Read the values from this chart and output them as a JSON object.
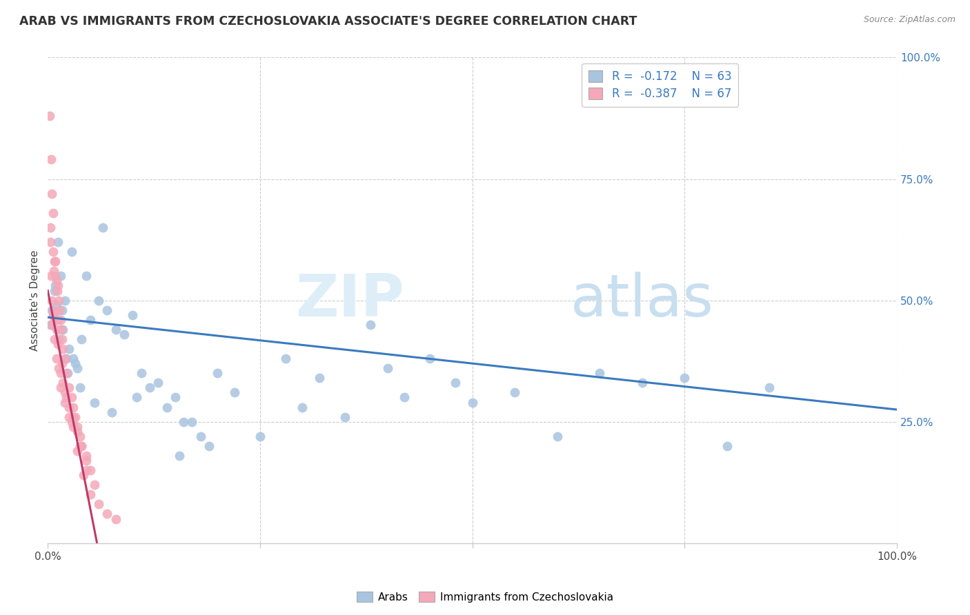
{
  "title": "ARAB VS IMMIGRANTS FROM CZECHOSLOVAKIA ASSOCIATE'S DEGREE CORRELATION CHART",
  "source": "Source: ZipAtlas.com",
  "ylabel": "Associate's Degree",
  "legend_blue_r": "-0.172",
  "legend_blue_n": "63",
  "legend_pink_r": "-0.387",
  "legend_pink_n": "67",
  "legend_label_blue": "Arabs",
  "legend_label_pink": "Immigrants from Czechoslovakia",
  "blue_color": "#a8c4e0",
  "pink_color": "#f4a8b8",
  "blue_line_color": "#3a7abf",
  "pink_line_color": "#c0396b",
  "pink_line_dashed_color": "#d4a0b0",
  "blue_scatter": [
    [
      0.5,
      48.0
    ],
    [
      1.2,
      62.0
    ],
    [
      1.5,
      55.0
    ],
    [
      2.0,
      50.0
    ],
    [
      0.8,
      52.0
    ],
    [
      0.3,
      45.0
    ],
    [
      0.6,
      47.0
    ],
    [
      1.0,
      49.0
    ],
    [
      1.8,
      44.0
    ],
    [
      2.5,
      40.0
    ],
    [
      3.0,
      38.0
    ],
    [
      3.5,
      36.0
    ],
    [
      4.0,
      42.0
    ],
    [
      5.0,
      46.0
    ],
    [
      6.0,
      50.0
    ],
    [
      7.0,
      48.0
    ],
    [
      8.0,
      44.0
    ],
    [
      9.0,
      43.0
    ],
    [
      10.0,
      47.0
    ],
    [
      11.0,
      35.0
    ],
    [
      12.0,
      32.0
    ],
    [
      13.0,
      33.0
    ],
    [
      14.0,
      28.0
    ],
    [
      15.0,
      30.0
    ],
    [
      16.0,
      25.0
    ],
    [
      18.0,
      22.0
    ],
    [
      20.0,
      35.0
    ],
    [
      22.0,
      31.0
    ],
    [
      25.0,
      22.0
    ],
    [
      28.0,
      38.0
    ],
    [
      30.0,
      28.0
    ],
    [
      32.0,
      34.0
    ],
    [
      35.0,
      26.0
    ],
    [
      38.0,
      45.0
    ],
    [
      40.0,
      36.0
    ],
    [
      42.0,
      30.0
    ],
    [
      45.0,
      38.0
    ],
    [
      48.0,
      33.0
    ],
    [
      50.0,
      29.0
    ],
    [
      55.0,
      31.0
    ],
    [
      60.0,
      22.0
    ],
    [
      65.0,
      35.0
    ],
    [
      70.0,
      33.0
    ],
    [
      75.0,
      34.0
    ],
    [
      80.0,
      20.0
    ],
    [
      85.0,
      32.0
    ],
    [
      4.5,
      55.0
    ],
    [
      6.5,
      65.0
    ],
    [
      2.8,
      60.0
    ],
    [
      1.5,
      44.0
    ],
    [
      2.2,
      38.0
    ],
    [
      3.2,
      37.0
    ],
    [
      1.3,
      42.0
    ],
    [
      0.9,
      53.0
    ],
    [
      1.7,
      48.0
    ],
    [
      2.3,
      35.0
    ],
    [
      3.8,
      32.0
    ],
    [
      5.5,
      29.0
    ],
    [
      7.5,
      27.0
    ],
    [
      10.5,
      30.0
    ],
    [
      15.5,
      18.0
    ],
    [
      17.0,
      25.0
    ],
    [
      19.0,
      20.0
    ]
  ],
  "pink_scatter": [
    [
      0.2,
      88.0
    ],
    [
      0.4,
      79.0
    ],
    [
      0.5,
      72.0
    ],
    [
      0.3,
      65.0
    ],
    [
      0.6,
      60.0
    ],
    [
      0.8,
      58.0
    ],
    [
      0.7,
      56.0
    ],
    [
      0.9,
      55.0
    ],
    [
      1.0,
      54.0
    ],
    [
      1.1,
      52.0
    ],
    [
      1.2,
      53.0
    ],
    [
      1.3,
      50.0
    ],
    [
      1.4,
      48.0
    ],
    [
      1.5,
      46.0
    ],
    [
      1.6,
      44.0
    ],
    [
      1.7,
      42.0
    ],
    [
      1.8,
      40.0
    ],
    [
      2.0,
      38.0
    ],
    [
      2.2,
      35.0
    ],
    [
      2.5,
      32.0
    ],
    [
      2.8,
      30.0
    ],
    [
      3.0,
      28.0
    ],
    [
      3.2,
      26.0
    ],
    [
      3.5,
      24.0
    ],
    [
      3.8,
      22.0
    ],
    [
      4.0,
      20.0
    ],
    [
      4.5,
      18.0
    ],
    [
      5.0,
      15.0
    ],
    [
      0.4,
      55.0
    ],
    [
      0.5,
      50.0
    ],
    [
      0.6,
      48.0
    ],
    [
      0.7,
      47.0
    ],
    [
      0.8,
      46.0
    ],
    [
      1.0,
      44.0
    ],
    [
      1.2,
      41.0
    ],
    [
      1.5,
      35.0
    ],
    [
      1.8,
      33.0
    ],
    [
      2.0,
      31.0
    ],
    [
      2.5,
      28.0
    ],
    [
      3.0,
      26.0
    ],
    [
      3.5,
      23.0
    ],
    [
      4.0,
      20.0
    ],
    [
      4.5,
      17.0
    ],
    [
      5.5,
      12.0
    ],
    [
      0.3,
      62.0
    ],
    [
      0.5,
      45.0
    ],
    [
      0.8,
      42.0
    ],
    [
      1.0,
      38.0
    ],
    [
      1.3,
      36.0
    ],
    [
      1.5,
      32.0
    ],
    [
      2.0,
      29.0
    ],
    [
      2.5,
      26.0
    ],
    [
      3.0,
      24.0
    ],
    [
      3.8,
      20.0
    ],
    [
      4.5,
      15.0
    ],
    [
      0.6,
      68.0
    ],
    [
      0.9,
      58.0
    ],
    [
      1.2,
      46.0
    ],
    [
      1.7,
      37.0
    ],
    [
      2.2,
      30.0
    ],
    [
      2.8,
      25.0
    ],
    [
      3.5,
      19.0
    ],
    [
      4.2,
      14.0
    ],
    [
      5.0,
      10.0
    ],
    [
      6.0,
      8.0
    ],
    [
      7.0,
      6.0
    ],
    [
      8.0,
      5.0
    ]
  ],
  "xlim": [
    0,
    100
  ],
  "ylim": [
    0,
    100
  ],
  "marker_size": 100,
  "blue_trend": [
    0.0,
    46.5,
    100.0,
    27.5
  ],
  "pink_trend_solid": [
    0.0,
    52.0,
    5.8,
    0.0
  ],
  "pink_trend_dash": [
    5.8,
    0.0,
    8.5,
    -10.0
  ]
}
